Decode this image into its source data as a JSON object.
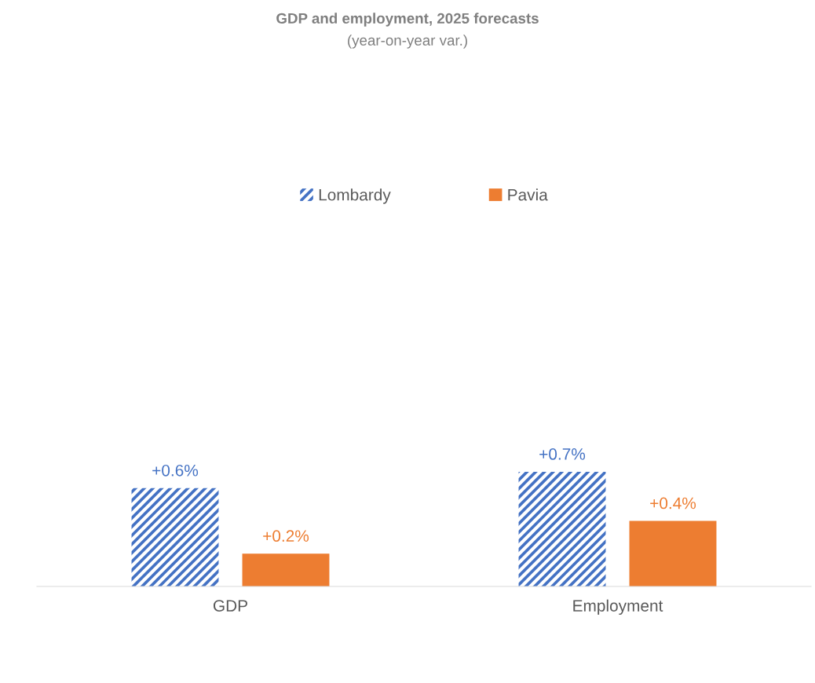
{
  "chart_data": {
    "type": "bar",
    "title": "GDP and employment, 2025 forecasts",
    "subtitle": "(year-on-year var.)",
    "categories": [
      "GDP",
      "Employment"
    ],
    "series": [
      {
        "name": "Lombardy",
        "color": "#4472c4",
        "values": [
          0.6,
          0.7
        ],
        "value_labels": [
          "+0.6%",
          "+0.7%"
        ]
      },
      {
        "name": "Pavia",
        "color": "#ed7d31",
        "values": [
          0.2,
          0.4
        ],
        "value_labels": [
          "+0.2%",
          "+0.4%"
        ]
      }
    ],
    "legend": "top",
    "grid": false
  }
}
